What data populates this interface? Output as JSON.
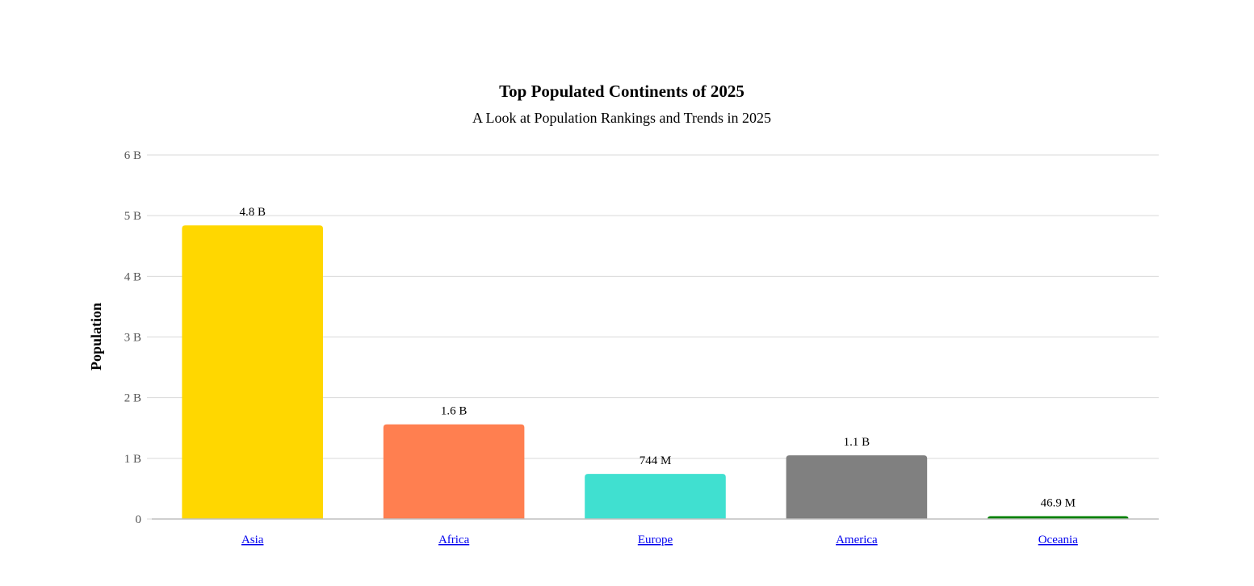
{
  "chart_data": {
    "type": "bar",
    "title": "Top Populated Continents of 2025",
    "subtitle": "A Look at Population Rankings and Trends in 2025",
    "ylabel": "Population",
    "xlabel": "",
    "ylim": [
      0,
      6000000000
    ],
    "yticks": [
      0,
      1000000000,
      2000000000,
      3000000000,
      4000000000,
      5000000000,
      6000000000
    ],
    "ytick_labels": [
      "0",
      "1 B",
      "2 B",
      "3 B",
      "4 B",
      "5 B",
      "6 B"
    ],
    "grid": true,
    "legend": "none",
    "categories": [
      "Asia",
      "Africa",
      "Europe",
      "America",
      "Oceania"
    ],
    "values": [
      4840000000,
      1560000000,
      744000000,
      1050000000,
      46900000
    ],
    "data_labels": [
      "4.8 B",
      "1.6 B",
      "744 M",
      "1.1 B",
      "46.9 M"
    ],
    "colors": [
      "#ffd700",
      "#ff7f50",
      "#40e0d0",
      "#808080",
      "#008000"
    ]
  }
}
